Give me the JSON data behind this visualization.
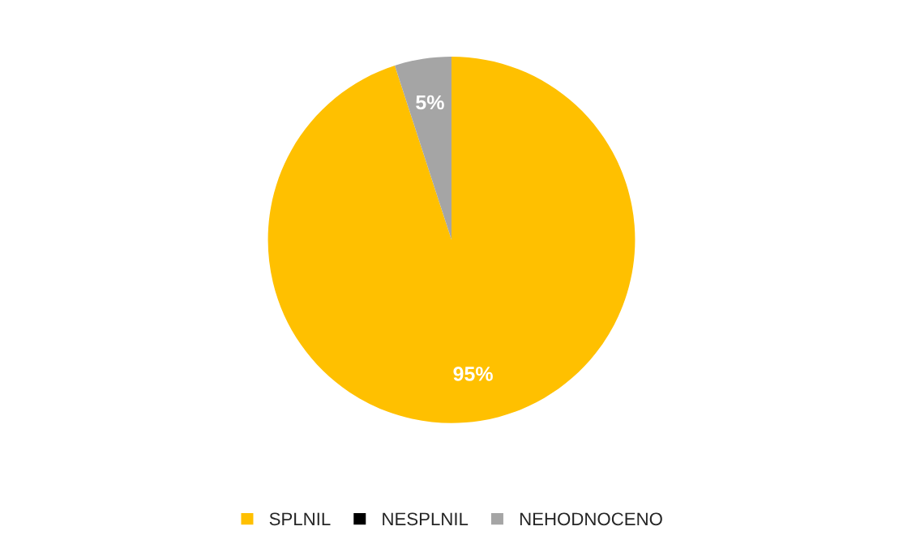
{
  "chart_data": {
    "type": "pie",
    "categories": [
      "SPLNIL",
      "NESPLNIL",
      "NEHODNOCENO"
    ],
    "values": [
      95,
      0,
      5
    ],
    "colors": [
      "#ffc000",
      "#000000",
      "#a5a5a5"
    ],
    "value_labels": [
      "95%",
      null,
      "5%"
    ],
    "legend": "bottom"
  }
}
